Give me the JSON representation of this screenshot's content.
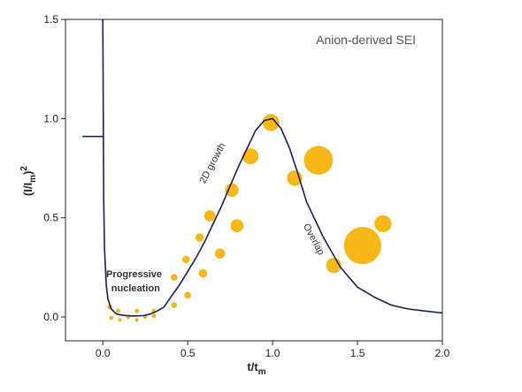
{
  "chart_data": {
    "type": "line",
    "title": "Anion-derived SEI",
    "xlabel": "t/t",
    "xlabel_sub": "m",
    "ylabel_parts": {
      "open": "(I/I",
      "sub": "m",
      "close": ")",
      "sup": "2"
    },
    "xlim": [
      -0.22,
      2.0
    ],
    "ylim": [
      -0.12,
      1.5
    ],
    "x_ticks": [
      0.0,
      0.5,
      1.0,
      1.5,
      2.0
    ],
    "x_tick_labels": [
      "0.0",
      "0.5",
      "1.0",
      "1.5",
      "2.0"
    ],
    "y_ticks": [
      0.0,
      0.5,
      1.0,
      1.5
    ],
    "y_tick_labels": [
      "0.0",
      "0.5",
      "1.0",
      "1.5"
    ],
    "grid": false,
    "legend": false,
    "colors": {
      "curve": "#1c1f5c",
      "marker": "#f7b718",
      "axis": "#222222"
    },
    "series": [
      {
        "x": [
          0.0,
          0.005,
          0.01,
          0.02,
          0.03,
          0.05,
          0.08,
          0.12,
          0.18,
          0.24,
          0.28,
          0.32,
          0.36,
          0.4,
          0.45,
          0.5,
          0.55,
          0.6,
          0.65,
          0.7,
          0.75,
          0.8,
          0.85,
          0.9,
          0.95,
          1.0,
          1.05,
          1.1,
          1.15,
          1.2,
          1.3,
          1.4,
          1.5,
          1.6,
          1.7,
          1.8,
          1.9,
          2.0
        ],
        "y": [
          1.5,
          0.6,
          0.35,
          0.16,
          0.09,
          0.04,
          0.015,
          0.008,
          0.005,
          0.007,
          0.015,
          0.03,
          0.05,
          0.1,
          0.16,
          0.23,
          0.3,
          0.38,
          0.47,
          0.56,
          0.66,
          0.76,
          0.85,
          0.94,
          0.99,
          1.0,
          0.95,
          0.85,
          0.72,
          0.58,
          0.4,
          0.25,
          0.15,
          0.1,
          0.06,
          0.04,
          0.03,
          0.02
        ]
      },
      {
        "x": [
          -0.12,
          0.0
        ],
        "y": [
          0.91,
          0.91
        ]
      }
    ],
    "markers": [
      {
        "x": 0.05,
        "y": -0.005,
        "r": 0.012
      },
      {
        "x": 0.1,
        "y": -0.015,
        "r": 0.011
      },
      {
        "x": 0.15,
        "y": 0.0,
        "r": 0.012
      },
      {
        "x": 0.2,
        "y": -0.015,
        "r": 0.011
      },
      {
        "x": 0.25,
        "y": 0.0,
        "r": 0.012
      },
      {
        "x": 0.3,
        "y": 0.005,
        "r": 0.013
      },
      {
        "x": 0.04,
        "y": 0.05,
        "r": 0.014
      },
      {
        "x": 0.09,
        "y": 0.03,
        "r": 0.013
      },
      {
        "x": 0.2,
        "y": 0.03,
        "r": 0.013
      },
      {
        "x": 0.3,
        "y": 0.03,
        "r": 0.013
      },
      {
        "x": 0.42,
        "y": 0.06,
        "r": 0.017
      },
      {
        "x": 0.5,
        "y": 0.11,
        "r": 0.02
      },
      {
        "x": 0.42,
        "y": 0.2,
        "r": 0.02
      },
      {
        "x": 0.49,
        "y": 0.29,
        "r": 0.022
      },
      {
        "x": 0.59,
        "y": 0.22,
        "r": 0.025
      },
      {
        "x": 0.57,
        "y": 0.4,
        "r": 0.025
      },
      {
        "x": 0.69,
        "y": 0.32,
        "r": 0.03
      },
      {
        "x": 0.63,
        "y": 0.51,
        "r": 0.033
      },
      {
        "x": 0.79,
        "y": 0.46,
        "r": 0.038
      },
      {
        "x": 0.76,
        "y": 0.64,
        "r": 0.04
      },
      {
        "x": 0.87,
        "y": 0.81,
        "r": 0.047
      },
      {
        "x": 0.99,
        "y": 0.98,
        "r": 0.05
      },
      {
        "x": 1.13,
        "y": 0.7,
        "r": 0.045
      },
      {
        "x": 1.27,
        "y": 0.79,
        "r": 0.085
      },
      {
        "x": 1.36,
        "y": 0.26,
        "r": 0.045
      },
      {
        "x": 1.65,
        "y": 0.47,
        "r": 0.05
      },
      {
        "x": 1.53,
        "y": 0.36,
        "r": 0.11
      }
    ],
    "annotations": [
      {
        "text": "2D growth",
        "x": 0.6,
        "y": 0.67,
        "rotate": -62,
        "bold": false
      },
      {
        "text": "Overlap",
        "x": 1.18,
        "y": 0.46,
        "rotate": 62,
        "bold": false
      },
      {
        "text": "Progressive",
        "x": 0.02,
        "y": 0.2,
        "rotate": 0,
        "bold": true
      },
      {
        "text": "nucleation",
        "x": 0.05,
        "y": 0.13,
        "rotate": 0,
        "bold": true
      }
    ]
  }
}
